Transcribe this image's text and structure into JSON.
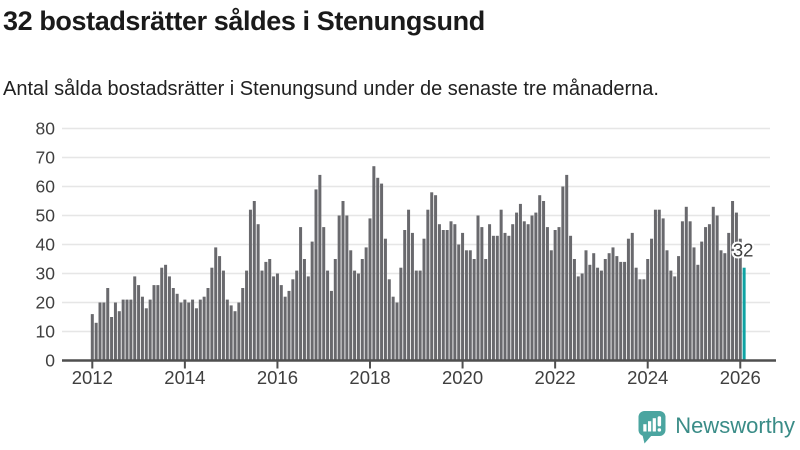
{
  "header": {
    "title": "32 bostadsrätter såldes i Stenungsund",
    "subtitle": "Antal sålda bostadsrätter i Stenungsund under de senaste tre månaderna."
  },
  "chart_data": {
    "type": "bar",
    "title": "32 bostadsrätter såldes i Stenungsund",
    "xlabel": "",
    "ylabel": "",
    "start": "2012-01",
    "frequency": "monthly",
    "values": [
      16,
      13,
      20,
      20,
      25,
      15,
      20,
      17,
      21,
      21,
      21,
      29,
      26,
      22,
      18,
      21,
      26,
      26,
      32,
      33,
      29,
      25,
      23,
      20,
      21,
      20,
      21,
      18,
      21,
      22,
      25,
      32,
      39,
      36,
      31,
      21,
      19,
      17,
      20,
      25,
      31,
      52,
      55,
      47,
      31,
      34,
      35,
      29,
      30,
      26,
      22,
      24,
      28,
      31,
      46,
      35,
      29,
      41,
      59,
      64,
      46,
      31,
      24,
      35,
      50,
      55,
      50,
      38,
      31,
      30,
      35,
      39,
      49,
      67,
      63,
      61,
      42,
      28,
      22,
      20,
      32,
      45,
      52,
      44,
      31,
      31,
      42,
      52,
      58,
      57,
      47,
      45,
      45,
      48,
      47,
      40,
      44,
      38,
      38,
      35,
      50,
      46,
      35,
      47,
      43,
      43,
      52,
      44,
      43,
      47,
      51,
      54,
      48,
      47,
      50,
      51,
      57,
      55,
      46,
      38,
      45,
      46,
      60,
      64,
      43,
      35,
      29,
      30,
      38,
      33,
      37,
      32,
      31,
      35,
      37,
      39,
      36,
      34,
      34,
      42,
      44,
      32,
      28,
      28,
      35,
      42,
      52,
      52,
      49,
      38,
      31,
      29,
      36,
      48,
      53,
      48,
      39,
      33,
      41,
      46,
      47,
      53,
      50,
      38,
      37,
      44,
      55,
      51,
      42,
      32
    ],
    "highlight": {
      "index": 169,
      "value": 32,
      "label": "32"
    },
    "ylim": [
      0,
      80
    ],
    "yticks": [
      0,
      10,
      20,
      30,
      40,
      50,
      60,
      70,
      80
    ],
    "xticks": [
      2012,
      2014,
      2016,
      2018,
      2020,
      2022,
      2024,
      2026
    ],
    "grid": "horizontal",
    "legend": "none",
    "colors": {
      "bar": "#69696d",
      "highlight": "#0fa3a3",
      "grid": "#e6e6e6",
      "axis": "#4f4f4f",
      "tick_label": "#3f3f3f",
      "annotation": "#3f3f3f"
    }
  },
  "logo": {
    "text": "Newsworthy",
    "text_color": "#3a8c87",
    "icon": "newsworthy-chart-bubble-icon",
    "icon_color": "#4ba5a0"
  }
}
